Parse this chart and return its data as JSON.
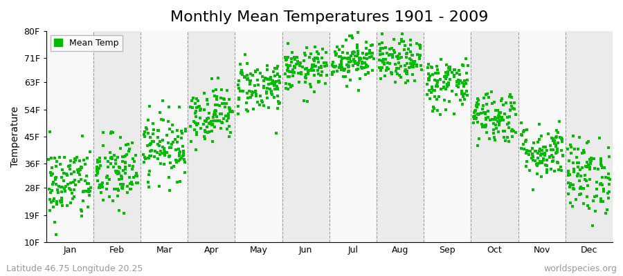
{
  "title": "Monthly Mean Temperatures 1901 - 2009",
  "ylabel": "Temperature",
  "yticks": [
    10,
    19,
    28,
    36,
    45,
    54,
    63,
    71,
    80
  ],
  "ytick_labels": [
    "10F",
    "19F",
    "28F",
    "36F",
    "45F",
    "54F",
    "63F",
    "71F",
    "80F"
  ],
  "ylim": [
    10,
    80
  ],
  "months": [
    "Jan",
    "Feb",
    "Mar",
    "Apr",
    "May",
    "Jun",
    "Jul",
    "Aug",
    "Sep",
    "Oct",
    "Nov",
    "Dec"
  ],
  "month_mean_temps_C": [
    -1.5,
    0.5,
    5.5,
    11.5,
    16.5,
    19.5,
    21.5,
    21.0,
    17.0,
    11.0,
    4.5,
    0.0
  ],
  "month_std_C": [
    3.5,
    3.5,
    3.0,
    2.5,
    2.5,
    2.0,
    2.0,
    2.0,
    2.5,
    2.5,
    2.5,
    3.5
  ],
  "n_years": 109,
  "marker_color": "#00bb00",
  "marker": "s",
  "marker_size": 3.5,
  "legend_label": "Mean Temp",
  "bg_color_light": "#f8f8f8",
  "bg_color_dark": "#ebebeb",
  "subtitle_left": "Latitude 46.75 Longitude 20.25",
  "subtitle_right": "worldspecies.org",
  "title_fontsize": 16,
  "label_fontsize": 10,
  "tick_fontsize": 9,
  "subtitle_fontsize": 9
}
